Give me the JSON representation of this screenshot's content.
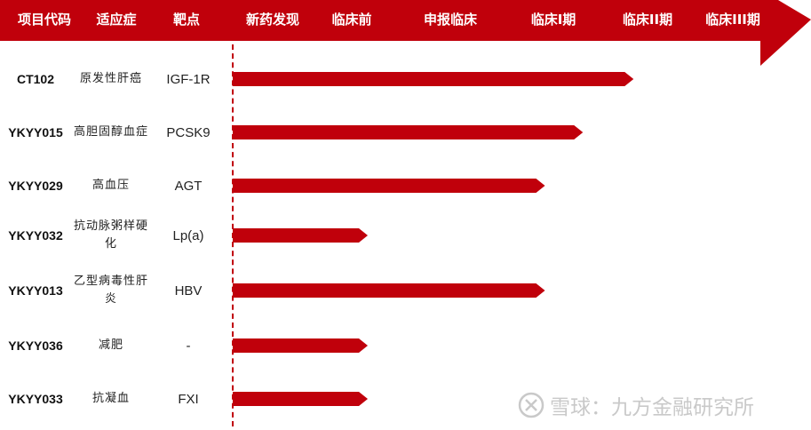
{
  "colors": {
    "accent": "#c0000b",
    "header_text": "#ffffff",
    "watermark": "#c9c9c9"
  },
  "header": {
    "project_code": "项目代码",
    "indication": "适应症",
    "target": "靶点",
    "stages": [
      "新药发现",
      "临床前",
      "申报临床",
      "临床I期",
      "临床II期",
      "临床III期"
    ]
  },
  "chart_data": {
    "type": "bar",
    "orientation": "horizontal",
    "stage_axis": [
      "新药发现",
      "临床前",
      "申报临床",
      "临床I期",
      "临床II期",
      "临床III期"
    ],
    "rows": [
      {
        "code": "CT102",
        "indication": "原发性肝癌",
        "target": "IGF-1R",
        "progress": 4.75
      },
      {
        "code": "YKYY015",
        "indication": "高胆固醇血症",
        "target": "PCSK9",
        "progress": 4.15
      },
      {
        "code": "YKYY029",
        "indication": "高血压",
        "target": "AGT",
        "progress": 3.7
      },
      {
        "code": "YKYY032",
        "indication": "抗动脉粥样硬化",
        "target": "Lp(a)",
        "progress": 1.6
      },
      {
        "code": "YKYY013",
        "indication": "乙型病毒性肝炎",
        "target": "HBV",
        "progress": 3.7
      },
      {
        "code": "YKYY036",
        "indication": "减肥",
        "target": "-",
        "progress": 1.6
      },
      {
        "code": "YKYY033",
        "indication": "抗凝血",
        "target": "FXI",
        "progress": 1.6
      }
    ]
  },
  "watermark": {
    "icon": "snowball-logo-icon",
    "text": "雪球：九方金融研究所"
  }
}
